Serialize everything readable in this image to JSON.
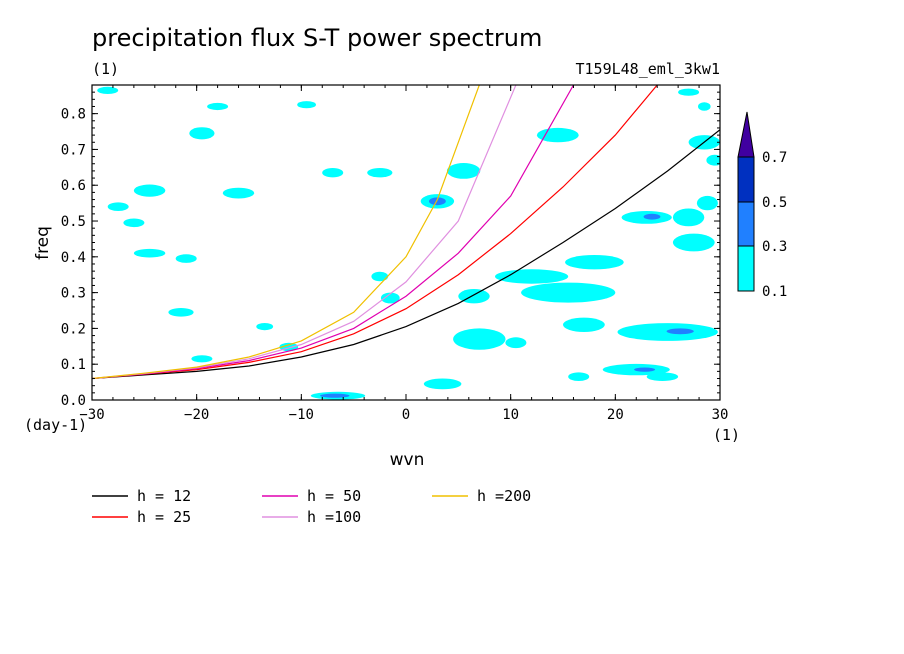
{
  "chart_data": {
    "type": "line",
    "title": "precipitation flux S-T power spectrum",
    "subtitle_left": "(1)",
    "subtitle_right": "T159L48_eml_3kw1",
    "xlabel": "wvn",
    "ylabel": "freq",
    "x_unit": "(1)",
    "y_unit": "(day-1)",
    "xlim": [
      -30,
      30
    ],
    "ylim": [
      0,
      0.88
    ],
    "x_ticks": [
      -30,
      -20,
      -10,
      0,
      10,
      20,
      30
    ],
    "x_tick_labels": [
      "−30",
      "−20",
      "−10",
      "0",
      "10",
      "20",
      "30"
    ],
    "y_ticks": [
      0.0,
      0.1,
      0.2,
      0.3,
      0.4,
      0.5,
      0.6,
      0.7,
      0.8
    ],
    "y_tick_labels": [
      "0.0",
      "0.1",
      "0.2",
      "0.3",
      "0.4",
      "0.5",
      "0.6",
      "0.7",
      "0.8"
    ],
    "series": [
      {
        "name": "h = 12",
        "color": "#000000",
        "x": [
          -30,
          -25,
          -20,
          -15,
          -10,
          -5,
          0,
          5,
          10,
          15,
          20,
          25,
          30
        ],
        "y": [
          0.06,
          0.07,
          0.08,
          0.095,
          0.12,
          0.155,
          0.205,
          0.27,
          0.35,
          0.44,
          0.535,
          0.64,
          0.755
        ]
      },
      {
        "name": "h = 25",
        "color": "#ff0000",
        "x": [
          -30,
          -25,
          -20,
          -15,
          -10,
          -5,
          0,
          5,
          10,
          15,
          20,
          24
        ],
        "y": [
          0.06,
          0.072,
          0.085,
          0.105,
          0.135,
          0.185,
          0.255,
          0.35,
          0.465,
          0.595,
          0.74,
          0.88
        ]
      },
      {
        "name": "h = 50",
        "color": "#e000b0",
        "x": [
          -30,
          -25,
          -20,
          -15,
          -10,
          -5,
          0,
          5,
          10,
          16
        ],
        "y": [
          0.06,
          0.073,
          0.088,
          0.11,
          0.145,
          0.2,
          0.29,
          0.41,
          0.57,
          0.88
        ]
      },
      {
        "name": "h =100",
        "color": "#e090e0",
        "x": [
          -30,
          -25,
          -20,
          -15,
          -10,
          -5,
          0,
          5,
          10.5
        ],
        "y": [
          0.06,
          0.074,
          0.09,
          0.115,
          0.155,
          0.22,
          0.33,
          0.5,
          0.88
        ]
      },
      {
        "name": "h =200",
        "color": "#f0c000",
        "x": [
          -30,
          -25,
          -20,
          -15,
          -10,
          -5,
          0,
          3,
          7
        ],
        "y": [
          0.06,
          0.075,
          0.092,
          0.12,
          0.165,
          0.245,
          0.4,
          0.56,
          0.88
        ]
      }
    ],
    "colorbar": {
      "levels": [
        0.1,
        0.3,
        0.5,
        0.7
      ],
      "level_labels": [
        "0.1",
        "0.3",
        "0.5",
        "0.7"
      ],
      "colors": [
        "#00ffff",
        "#2080ff",
        "#0030c0",
        "#4000a0"
      ]
    },
    "spectral_patches": [
      {
        "x": -6.5,
        "y": 0.012,
        "rx": 2.6,
        "ry": 0.011,
        "level": 1
      },
      {
        "x": -6.8,
        "y": 0.012,
        "rx": 1.4,
        "ry": 0.006,
        "level": 2
      },
      {
        "x": 3.0,
        "y": 0.555,
        "rx": 1.6,
        "ry": 0.02,
        "level": 1
      },
      {
        "x": 3.0,
        "y": 0.555,
        "rx": 0.8,
        "ry": 0.011,
        "level": 2
      },
      {
        "x": 25.0,
        "y": 0.19,
        "rx": 4.8,
        "ry": 0.025,
        "level": 1
      },
      {
        "x": 26.2,
        "y": 0.192,
        "rx": 1.3,
        "ry": 0.008,
        "level": 2
      },
      {
        "x": 22.0,
        "y": 0.085,
        "rx": 3.2,
        "ry": 0.016,
        "level": 1
      },
      {
        "x": 22.8,
        "y": 0.085,
        "rx": 1.0,
        "ry": 0.006,
        "level": 2
      },
      {
        "x": 23.0,
        "y": 0.51,
        "rx": 2.4,
        "ry": 0.018,
        "level": 1
      },
      {
        "x": 23.5,
        "y": 0.512,
        "rx": 0.8,
        "ry": 0.008,
        "level": 2
      },
      {
        "x": -11.2,
        "y": 0.148,
        "rx": 0.9,
        "ry": 0.012,
        "level": 1
      },
      {
        "x": 15.5,
        "y": 0.3,
        "rx": 4.5,
        "ry": 0.028,
        "level": 1
      },
      {
        "x": 12.0,
        "y": 0.345,
        "rx": 3.5,
        "ry": 0.02,
        "level": 1
      },
      {
        "x": 18.0,
        "y": 0.385,
        "rx": 2.8,
        "ry": 0.02,
        "level": 1
      },
      {
        "x": 7.0,
        "y": 0.17,
        "rx": 2.5,
        "ry": 0.03,
        "level": 1
      },
      {
        "x": 17.0,
        "y": 0.21,
        "rx": 2.0,
        "ry": 0.02,
        "level": 1
      },
      {
        "x": 27.5,
        "y": 0.44,
        "rx": 2.0,
        "ry": 0.025,
        "level": 1
      },
      {
        "x": 27.0,
        "y": 0.51,
        "rx": 1.5,
        "ry": 0.025,
        "level": 1
      },
      {
        "x": 28.8,
        "y": 0.55,
        "rx": 1.0,
        "ry": 0.02,
        "level": 1
      },
      {
        "x": 28.5,
        "y": 0.72,
        "rx": 1.5,
        "ry": 0.02,
        "level": 1
      },
      {
        "x": 5.5,
        "y": 0.64,
        "rx": 1.6,
        "ry": 0.022,
        "level": 1
      },
      {
        "x": 14.5,
        "y": 0.74,
        "rx": 2.0,
        "ry": 0.02,
        "level": 1
      },
      {
        "x": -19.5,
        "y": 0.745,
        "rx": 1.2,
        "ry": 0.017,
        "level": 1
      },
      {
        "x": -7.0,
        "y": 0.635,
        "rx": 1.0,
        "ry": 0.013,
        "level": 1
      },
      {
        "x": -2.5,
        "y": 0.635,
        "rx": 1.2,
        "ry": 0.013,
        "level": 1
      },
      {
        "x": -24.5,
        "y": 0.585,
        "rx": 1.5,
        "ry": 0.017,
        "level": 1
      },
      {
        "x": -16.0,
        "y": 0.578,
        "rx": 1.5,
        "ry": 0.015,
        "level": 1
      },
      {
        "x": -21.5,
        "y": 0.245,
        "rx": 1.2,
        "ry": 0.012,
        "level": 1
      },
      {
        "x": -26.0,
        "y": 0.495,
        "rx": 1.0,
        "ry": 0.012,
        "level": 1
      },
      {
        "x": -27.5,
        "y": 0.54,
        "rx": 1.0,
        "ry": 0.012,
        "level": 1
      },
      {
        "x": -24.5,
        "y": 0.41,
        "rx": 1.5,
        "ry": 0.012,
        "level": 1
      },
      {
        "x": -21.0,
        "y": 0.395,
        "rx": 1.0,
        "ry": 0.012,
        "level": 1
      },
      {
        "x": -2.5,
        "y": 0.345,
        "rx": 0.8,
        "ry": 0.013,
        "level": 1
      },
      {
        "x": 6.5,
        "y": 0.29,
        "rx": 1.5,
        "ry": 0.02,
        "level": 1
      },
      {
        "x": 3.5,
        "y": 0.045,
        "rx": 1.8,
        "ry": 0.015,
        "level": 1
      },
      {
        "x": 16.5,
        "y": 0.065,
        "rx": 1.0,
        "ry": 0.012,
        "level": 1
      },
      {
        "x": 24.5,
        "y": 0.065,
        "rx": 1.5,
        "ry": 0.012,
        "level": 1
      },
      {
        "x": 29.5,
        "y": 0.67,
        "rx": 0.8,
        "ry": 0.015,
        "level": 1
      },
      {
        "x": 28.5,
        "y": 0.82,
        "rx": 0.6,
        "ry": 0.012,
        "level": 1
      },
      {
        "x": 27.0,
        "y": 0.86,
        "rx": 1.0,
        "ry": 0.01,
        "level": 1
      },
      {
        "x": -18.0,
        "y": 0.82,
        "rx": 1.0,
        "ry": 0.01,
        "level": 1
      },
      {
        "x": -9.5,
        "y": 0.825,
        "rx": 0.9,
        "ry": 0.01,
        "level": 1
      },
      {
        "x": -19.5,
        "y": 0.115,
        "rx": 1.0,
        "ry": 0.01,
        "level": 1
      },
      {
        "x": -28.5,
        "y": 0.865,
        "rx": 1.0,
        "ry": 0.01,
        "level": 1
      },
      {
        "x": -13.5,
        "y": 0.205,
        "rx": 0.8,
        "ry": 0.01,
        "level": 1
      },
      {
        "x": 10.5,
        "y": 0.16,
        "rx": 1.0,
        "ry": 0.015,
        "level": 1
      },
      {
        "x": -1.5,
        "y": 0.285,
        "rx": 0.9,
        "ry": 0.015,
        "level": 1
      }
    ]
  }
}
